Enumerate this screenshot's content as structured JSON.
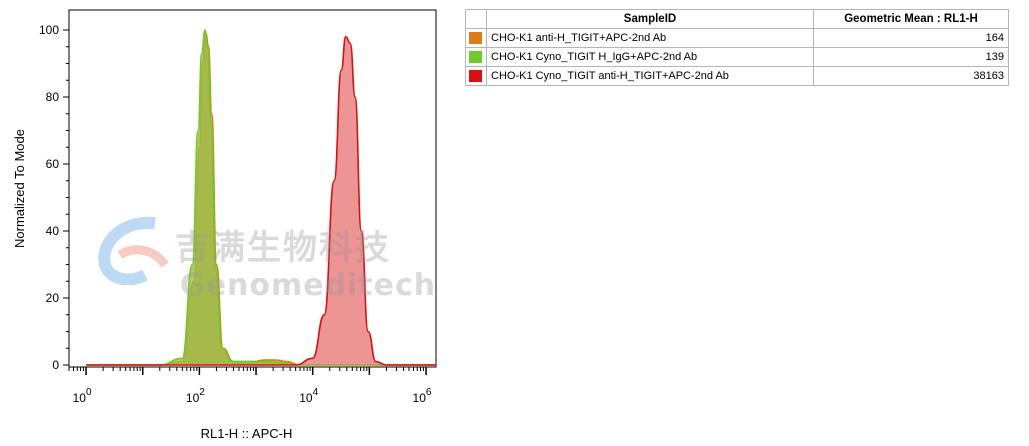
{
  "chart_data": {
    "type": "area",
    "xlabel": "RL1-H :: APC-H",
    "ylabel": "Normalized To Mode",
    "x_scale": "log",
    "xlim": [
      0.5,
      1500000
    ],
    "ylim": [
      0,
      100
    ],
    "x_ticks": [
      {
        "base": "10",
        "exp": "0",
        "value": 1
      },
      {
        "base": "10",
        "exp": "2",
        "value": 100
      },
      {
        "base": "10",
        "exp": "4",
        "value": 10000
      },
      {
        "base": "10",
        "exp": "6",
        "value": 1000000
      }
    ],
    "y_ticks": [
      "0",
      "20",
      "40",
      "60",
      "80",
      "100"
    ],
    "y_tick_values": [
      0,
      20,
      40,
      60,
      80,
      100
    ],
    "series": [
      {
        "name": "CHO-K1 anti-H_TIGIT+APC-2nd Ab",
        "color": "#e07b1a",
        "fill": "#b89a2f",
        "points": [
          [
            1,
            0
          ],
          [
            20,
            0
          ],
          [
            50,
            1
          ],
          [
            80,
            25
          ],
          [
            100,
            65
          ],
          [
            115,
            90
          ],
          [
            130,
            99
          ],
          [
            145,
            95
          ],
          [
            165,
            75
          ],
          [
            200,
            30
          ],
          [
            260,
            5
          ],
          [
            400,
            1
          ],
          [
            900,
            1
          ],
          [
            1400,
            1.5
          ],
          [
            2200,
            1.5
          ],
          [
            3500,
            1
          ],
          [
            6000,
            0
          ],
          [
            1500000,
            0
          ]
        ]
      },
      {
        "name": "CHO-K1 Cyno_TIGIT H_IgG+APC-2nd Ab",
        "color": "#6ecb2a",
        "fill": "#9dbd48",
        "points": [
          [
            1,
            0
          ],
          [
            20,
            0
          ],
          [
            50,
            2
          ],
          [
            75,
            30
          ],
          [
            95,
            70
          ],
          [
            110,
            93
          ],
          [
            125,
            100
          ],
          [
            140,
            95
          ],
          [
            160,
            72
          ],
          [
            195,
            28
          ],
          [
            250,
            5
          ],
          [
            380,
            1
          ],
          [
            900,
            1
          ],
          [
            1500,
            1
          ],
          [
            3000,
            0.5
          ],
          [
            6000,
            0
          ],
          [
            1500000,
            0
          ]
        ]
      },
      {
        "name": "CHO-K1 Cyno_TIGIT anti-H_TIGIT+APC-2nd Ab",
        "color": "#d81010",
        "fill": "#e8797b",
        "points": [
          [
            1,
            0
          ],
          [
            5000,
            0
          ],
          [
            10000,
            2
          ],
          [
            16000,
            15
          ],
          [
            24000,
            55
          ],
          [
            32000,
            88
          ],
          [
            38163,
            98
          ],
          [
            46000,
            96
          ],
          [
            56000,
            80
          ],
          [
            72000,
            40
          ],
          [
            95000,
            10
          ],
          [
            130000,
            1
          ],
          [
            200000,
            0
          ],
          [
            1500000,
            0
          ]
        ]
      }
    ],
    "legend_table": {
      "headers": [
        "SampleID",
        "Geometric Mean : RL1-H"
      ],
      "rows": [
        {
          "name": "CHO-K1 anti-H_TIGIT+APC-2nd Ab",
          "value": "164",
          "color": "#e07b1a"
        },
        {
          "name": "CHO-K1 Cyno_TIGIT H_IgG+APC-2nd Ab",
          "value": "139",
          "color": "#6ecb2a"
        },
        {
          "name": "CHO-K1 Cyno_TIGIT anti-H_TIGIT+APC-2nd Ab",
          "value": "38163",
          "color": "#d81010"
        }
      ]
    }
  },
  "watermark": {
    "cn": "吉满生物科技",
    "en": "Genomeditech"
  }
}
